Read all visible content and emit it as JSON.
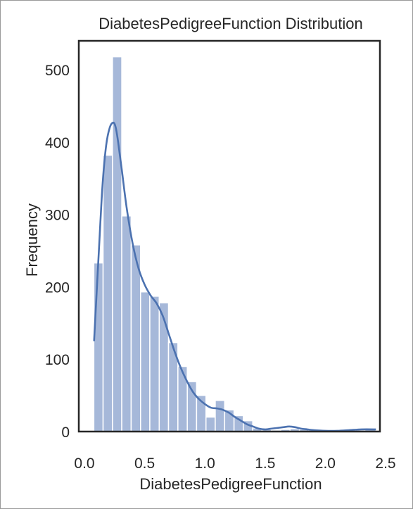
{
  "chart_data": {
    "type": "histogram",
    "title": "DiabetesPedigreeFunction Distribution",
    "xlabel": "DiabetesPedigreeFunction",
    "ylabel": "Frequency",
    "xlim": [
      0.0,
      2.5
    ],
    "ylim": [
      0,
      540
    ],
    "xticks": [
      0.0,
      0.5,
      1.0,
      1.5,
      2.0,
      2.5
    ],
    "xtick_labels": [
      "0.0",
      "0.5",
      "1.0",
      "1.5",
      "2.0",
      "2.5"
    ],
    "yticks": [
      0,
      100,
      200,
      300,
      400,
      500
    ],
    "ytick_labels": [
      "0",
      "100",
      "200",
      "300",
      "400",
      "500"
    ],
    "grid": false,
    "legend": false,
    "bins": [
      {
        "x0": 0.078,
        "x1": 0.155,
        "count": 233
      },
      {
        "x0": 0.155,
        "x1": 0.233,
        "count": 382
      },
      {
        "x0": 0.233,
        "x1": 0.31,
        "count": 518
      },
      {
        "x0": 0.31,
        "x1": 0.388,
        "count": 298
      },
      {
        "x0": 0.388,
        "x1": 0.466,
        "count": 258
      },
      {
        "x0": 0.466,
        "x1": 0.543,
        "count": 193
      },
      {
        "x0": 0.543,
        "x1": 0.621,
        "count": 187
      },
      {
        "x0": 0.621,
        "x1": 0.698,
        "count": 178
      },
      {
        "x0": 0.698,
        "x1": 0.776,
        "count": 123
      },
      {
        "x0": 0.776,
        "x1": 0.854,
        "count": 90
      },
      {
        "x0": 0.854,
        "x1": 0.931,
        "count": 69
      },
      {
        "x0": 0.931,
        "x1": 1.009,
        "count": 50
      },
      {
        "x0": 1.009,
        "x1": 1.086,
        "count": 20
      },
      {
        "x0": 1.086,
        "x1": 1.164,
        "count": 43
      },
      {
        "x0": 1.164,
        "x1": 1.242,
        "count": 30
      },
      {
        "x0": 1.242,
        "x1": 1.319,
        "count": 22
      },
      {
        "x0": 1.319,
        "x1": 1.397,
        "count": 15
      },
      {
        "x0": 1.397,
        "x1": 1.474,
        "count": 5
      },
      {
        "x0": 1.474,
        "x1": 1.552,
        "count": 3
      },
      {
        "x0": 1.552,
        "x1": 1.63,
        "count": 2
      },
      {
        "x0": 1.63,
        "x1": 1.707,
        "count": 3
      },
      {
        "x0": 1.707,
        "x1": 1.785,
        "count": 4
      },
      {
        "x0": 1.785,
        "x1": 1.862,
        "count": 3
      },
      {
        "x0": 1.862,
        "x1": 1.94,
        "count": 2
      },
      {
        "x0": 1.94,
        "x1": 2.018,
        "count": 1
      },
      {
        "x0": 2.018,
        "x1": 2.095,
        "count": 1
      },
      {
        "x0": 2.095,
        "x1": 2.173,
        "count": 1
      },
      {
        "x0": 2.173,
        "x1": 2.25,
        "count": 2
      },
      {
        "x0": 2.25,
        "x1": 2.328,
        "count": 2
      },
      {
        "x0": 2.328,
        "x1": 2.42,
        "count": 3
      }
    ],
    "kde": {
      "x": [
        0.08,
        0.12,
        0.15,
        0.18,
        0.21,
        0.24,
        0.26,
        0.28,
        0.31,
        0.35,
        0.4,
        0.45,
        0.5,
        0.55,
        0.6,
        0.65,
        0.7,
        0.75,
        0.8,
        0.85,
        0.9,
        0.95,
        1.0,
        1.05,
        1.1,
        1.15,
        1.2,
        1.25,
        1.3,
        1.35,
        1.4,
        1.45,
        1.5,
        1.55,
        1.6,
        1.65,
        1.7,
        1.75,
        1.8,
        1.85,
        1.9,
        2.0,
        2.1,
        2.2,
        2.3,
        2.42
      ],
      "y": [
        125,
        250,
        340,
        395,
        420,
        427,
        420,
        400,
        362,
        310,
        260,
        225,
        203,
        188,
        177,
        160,
        135,
        110,
        88,
        70,
        55,
        45,
        38,
        33,
        32,
        30,
        26,
        20,
        15,
        10,
        7,
        4,
        3,
        4,
        5,
        6,
        7,
        6,
        4,
        3,
        2,
        1,
        1,
        2,
        3,
        3
      ]
    },
    "colors": {
      "bar_fill": "#a6b8d9",
      "bar_edge": "#ffffff",
      "kde_line": "#4c72b0",
      "axes_frame": "#262626",
      "text": "#262626"
    }
  }
}
